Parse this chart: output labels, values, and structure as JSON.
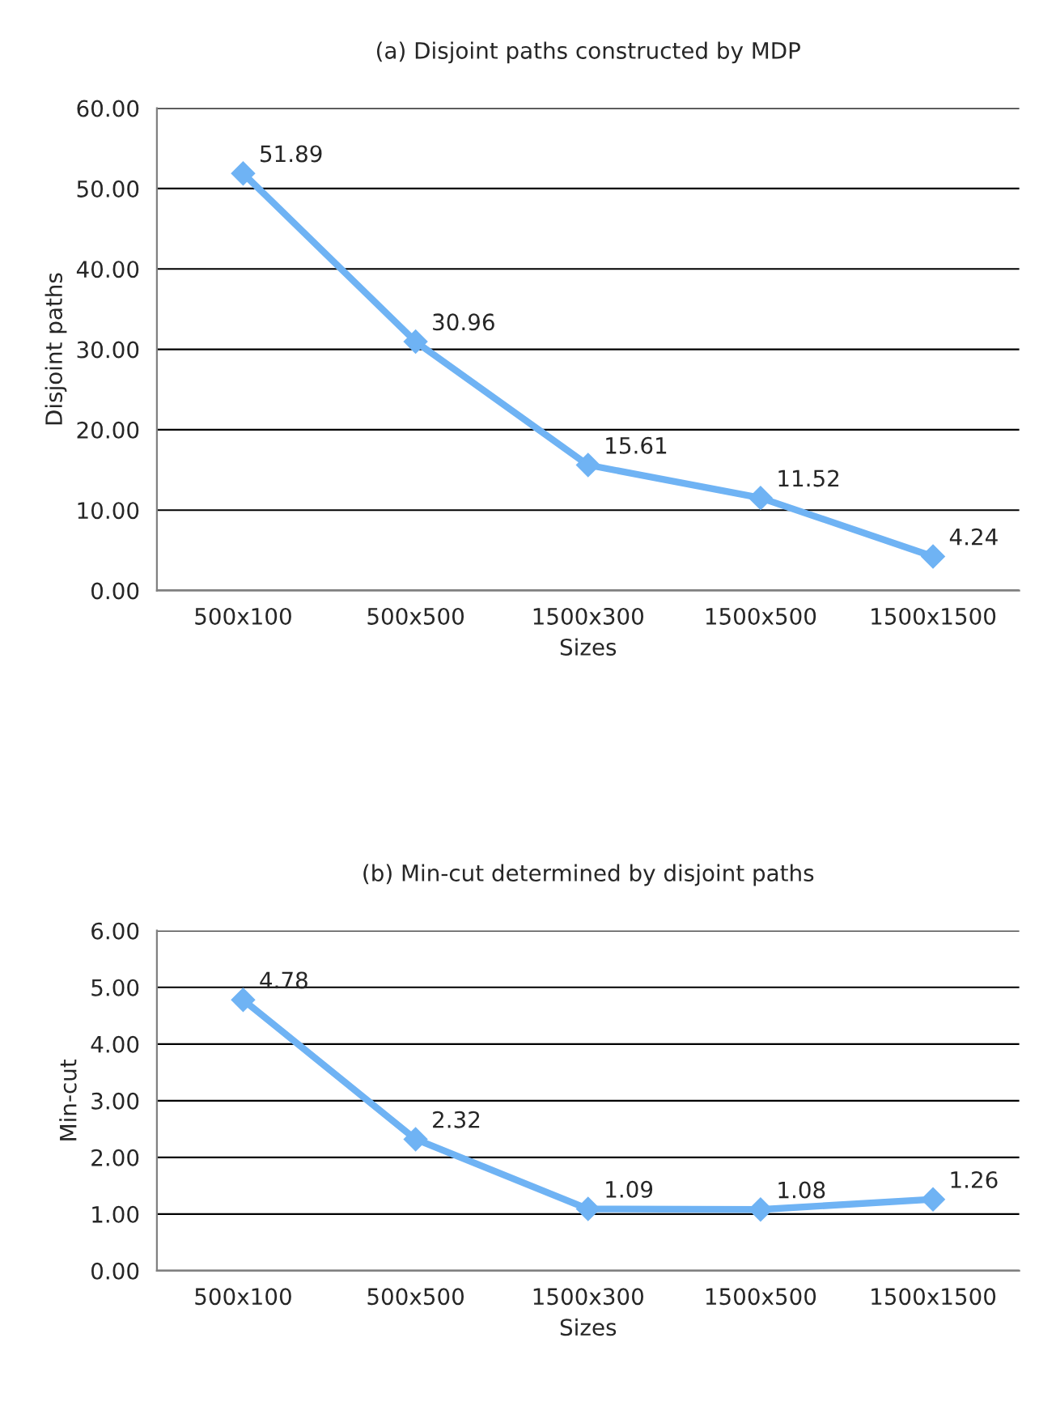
{
  "chart_data": [
    {
      "type": "line",
      "title": "(a) Disjoint paths constructed by MDP",
      "xlabel": "Sizes",
      "ylabel": "Disjoint paths",
      "categories": [
        "500x100",
        "500x500",
        "1500x300",
        "1500x500",
        "1500x1500"
      ],
      "series": [
        {
          "color": "#6fb3f4",
          "values": [
            51.89,
            30.96,
            15.61,
            11.52,
            4.24
          ]
        }
      ],
      "ylim": [
        0,
        60
      ],
      "yticks": [
        {
          "value": 0,
          "label": "0.00"
        },
        {
          "value": 10,
          "label": "10.00"
        },
        {
          "value": 20,
          "label": "20.00"
        },
        {
          "value": 30,
          "label": "30.00"
        },
        {
          "value": 40,
          "label": "40.00"
        },
        {
          "value": 50,
          "label": "50.00"
        },
        {
          "value": 60,
          "label": "60.00"
        }
      ],
      "grid": "y",
      "marker": "diamond",
      "line_style": "solid",
      "data_labels": true,
      "legend": false
    },
    {
      "type": "line",
      "title": "(b) Min-cut determined by disjoint paths",
      "xlabel": "Sizes",
      "ylabel": "Min-cut",
      "categories": [
        "500x100",
        "500x500",
        "1500x300",
        "1500x500",
        "1500x1500"
      ],
      "series": [
        {
          "color": "#6fb3f4",
          "values": [
            4.78,
            2.32,
            1.09,
            1.08,
            1.26
          ]
        }
      ],
      "ylim": [
        0,
        6
      ],
      "yticks": [
        {
          "value": 0,
          "label": "0.00"
        },
        {
          "value": 1,
          "label": "1.00"
        },
        {
          "value": 2,
          "label": "2.00"
        },
        {
          "value": 3,
          "label": "3.00"
        },
        {
          "value": 4,
          "label": "4.00"
        },
        {
          "value": 5,
          "label": "5.00"
        },
        {
          "value": 6,
          "label": "6.00"
        }
      ],
      "grid": "y",
      "marker": "diamond",
      "line_style": "solid",
      "data_labels": true,
      "legend": false
    }
  ]
}
